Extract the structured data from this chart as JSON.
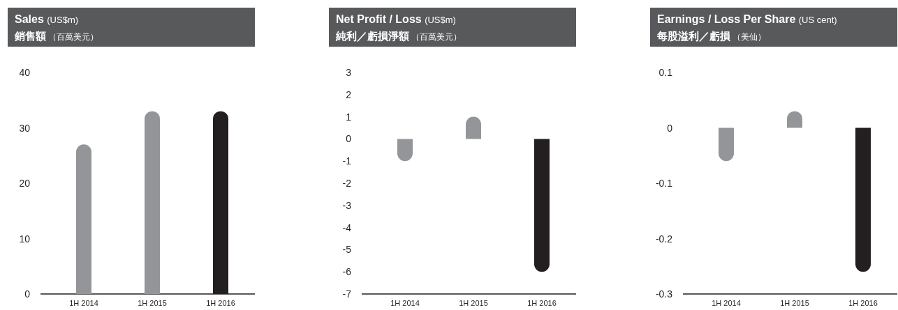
{
  "chart_data": [
    {
      "type": "bar",
      "title": "Sales (US$m)",
      "subtitle": "銷售額（百萬美元）",
      "categories": [
        "1H 2014",
        "1H 2015",
        "1H 2016"
      ],
      "values": [
        27,
        33,
        33
      ],
      "colors": [
        "#939598",
        "#939598",
        "#231f20"
      ],
      "ylim": [
        0,
        40
      ],
      "yticks": [
        0,
        10,
        20,
        30,
        40
      ]
    },
    {
      "type": "bar",
      "title": "Net Profit / Loss (US$m)",
      "subtitle": "純利／虧損淨額（百萬美元）",
      "categories": [
        "1H 2014",
        "1H 2015",
        "1H 2016"
      ],
      "values": [
        -1,
        1,
        -6
      ],
      "colors": [
        "#939598",
        "#939598",
        "#231f20"
      ],
      "ylim": [
        -7,
        3
      ],
      "yticks": [
        -7,
        -6,
        -5,
        -4,
        -3,
        -2,
        -1,
        0,
        1,
        2,
        3
      ]
    },
    {
      "type": "bar",
      "title": "Earnings / Loss Per Share (US cent)",
      "subtitle": "每股溢利／虧損（美仙）",
      "categories": [
        "1H 2014",
        "1H 2015",
        "1H 2016"
      ],
      "values": [
        -0.06,
        0.03,
        -0.26
      ],
      "colors": [
        "#939598",
        "#939598",
        "#231f20"
      ],
      "ylim": [
        -0.3,
        0.1
      ],
      "yticks": [
        -0.3,
        -0.2,
        -0.1,
        0,
        0.1
      ]
    }
  ]
}
